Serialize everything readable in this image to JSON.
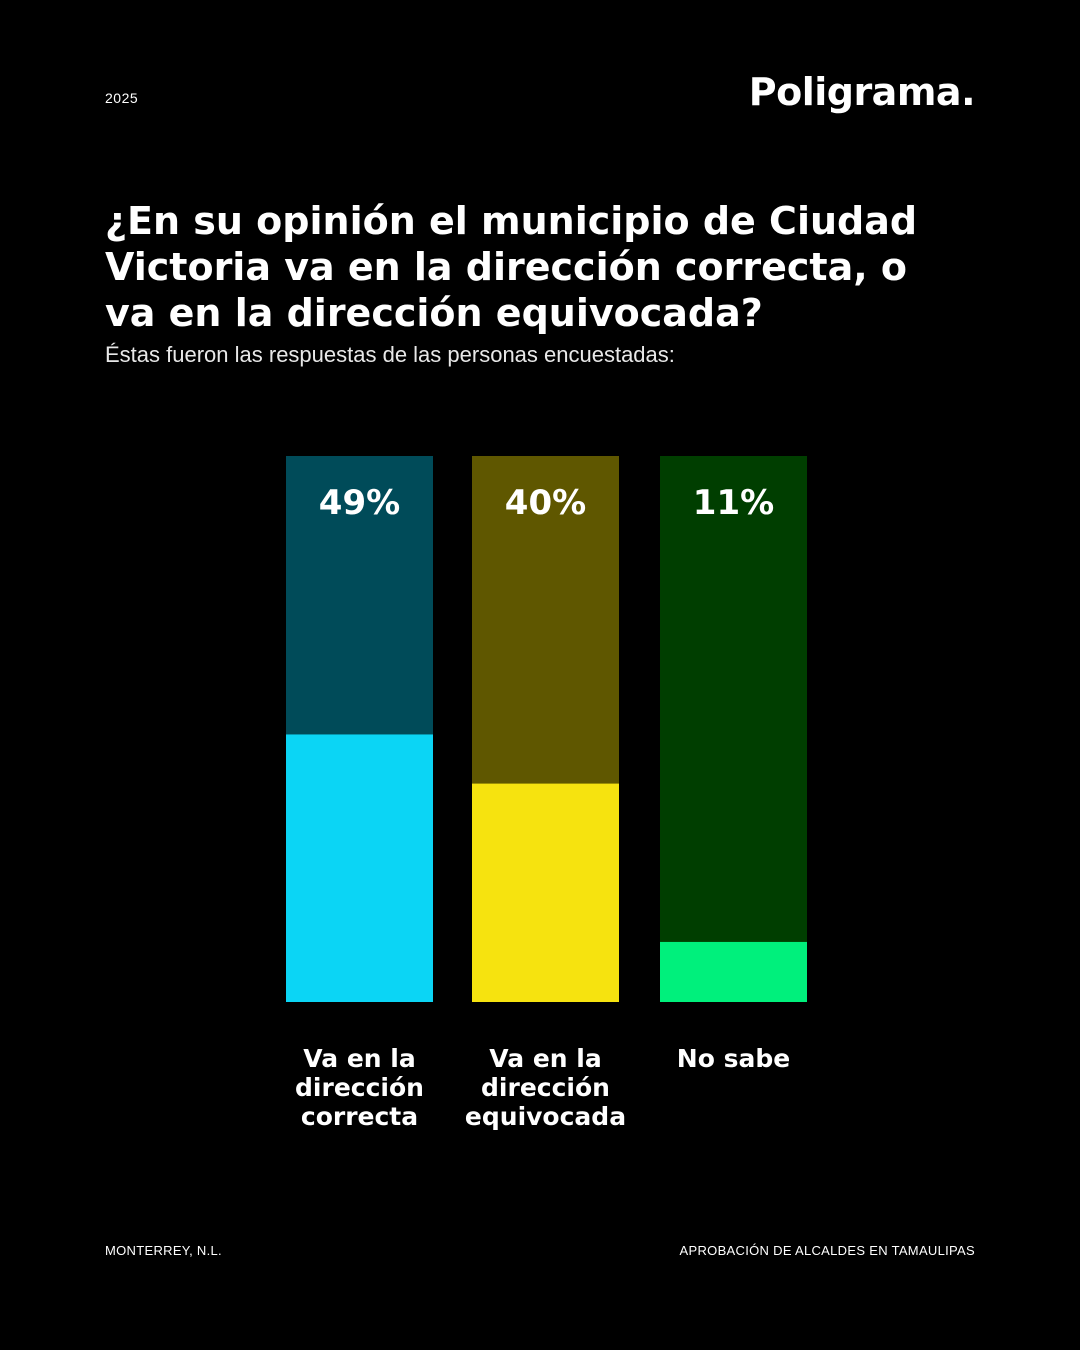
{
  "header": {
    "year": "2025",
    "brand": "Poligrama."
  },
  "question": "¿En su opinión el municipio de Ciudad Victoria va en la dirección correcta, o va en la dirección equivocada?",
  "subtitle": "Éstas fueron las respuestas de las personas encuestadas:",
  "chart_data": {
    "type": "bar",
    "categories": [
      "Va en la dirección correcta",
      "Va en la dirección equivocada",
      "No sabe"
    ],
    "values": [
      49,
      40,
      11
    ],
    "value_labels": [
      "49%",
      "40%",
      "11%"
    ],
    "ylim": [
      0,
      100
    ],
    "fill_colors": [
      "#0bd5f5",
      "#f6e30f",
      "#00f07c"
    ],
    "track_colors": [
      "#004b59",
      "#5f5700",
      "#003e00"
    ],
    "grid": false,
    "legend": "none"
  },
  "footer": {
    "location": "MONTERREY, N.L.",
    "series_title": "APROBACIÓN DE ALCALDES EN TAMAULIPAS"
  }
}
